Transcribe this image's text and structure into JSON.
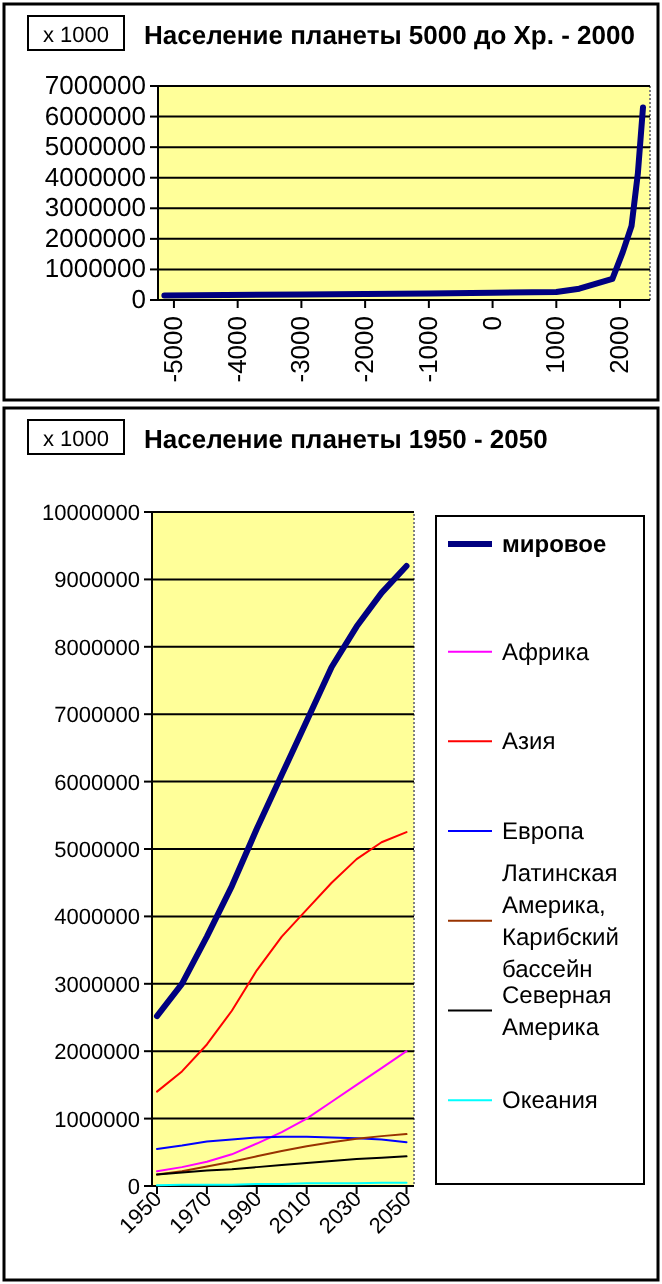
{
  "chart_data": [
    {
      "type": "line",
      "title": "Население планеты 5000 до Хр. - 2000",
      "annotations": [
        "x 1000"
      ],
      "xlim": [
        -5250,
        2470
      ],
      "xticks": [
        -5000,
        -4000,
        -3000,
        -2000,
        -1000,
        0,
        1000,
        2000
      ],
      "ylim": [
        0,
        7000000
      ],
      "yticks": [
        0,
        1000000,
        2000000,
        3000000,
        4000000,
        5000000,
        6000000,
        7000000
      ],
      "grid": "y",
      "legend": false,
      "x": [
        -5150,
        -3000,
        -1000,
        0,
        1000,
        1360,
        1880,
        2040,
        2180,
        2280,
        2360
      ],
      "series": [
        {
          "color": "#000080",
          "values": [
            150000,
            180000,
            210000,
            240000,
            260000,
            370000,
            690000,
            1550000,
            2420000,
            4150000,
            6300000
          ]
        }
      ]
    },
    {
      "type": "line",
      "title": "Население планеты 1950  - 2050",
      "annotations": [
        "x 1000"
      ],
      "xlim": [
        1948,
        2053
      ],
      "xticks": [
        1950,
        1970,
        1990,
        2010,
        2030,
        2050
      ],
      "ylim": [
        0,
        10000000
      ],
      "yticks": [
        0,
        1000000,
        2000000,
        3000000,
        4000000,
        5000000,
        6000000,
        7000000,
        8000000,
        9000000,
        10000000
      ],
      "grid": "y",
      "legend": "right",
      "x": [
        1950,
        1960,
        1970,
        1980,
        1990,
        2000,
        2010,
        2020,
        2030,
        2040,
        2050
      ],
      "series": [
        {
          "name": "мировое",
          "color": "#000080",
          "values": [
            2520000,
            3000000,
            3700000,
            4450000,
            5300000,
            6100000,
            6900000,
            7700000,
            8300000,
            8800000,
            9200000
          ]
        },
        {
          "name": "Африка",
          "color": "#ff00ff",
          "values": [
            220000,
            280000,
            360000,
            470000,
            630000,
            800000,
            1000000,
            1250000,
            1500000,
            1750000,
            2000000
          ]
        },
        {
          "name": "Азия",
          "color": "#ff0000",
          "values": [
            1400000,
            1700000,
            2100000,
            2600000,
            3200000,
            3700000,
            4100000,
            4500000,
            4850000,
            5100000,
            5250000
          ]
        },
        {
          "name": "Европа",
          "color": "#0000ff",
          "values": [
            550000,
            600000,
            660000,
            690000,
            720000,
            730000,
            730000,
            720000,
            710000,
            690000,
            650000
          ]
        },
        {
          "name": "Латинская Америка, Карибский бассейн",
          "color": "#993300",
          "values": [
            170000,
            220000,
            290000,
            360000,
            440000,
            520000,
            590000,
            650000,
            700000,
            740000,
            770000
          ]
        },
        {
          "name": "Северная Америка",
          "color": "#000000",
          "values": [
            170000,
            200000,
            230000,
            250000,
            280000,
            310000,
            340000,
            370000,
            400000,
            420000,
            440000
          ]
        },
        {
          "name": "Океания",
          "color": "#00ffff",
          "values": [
            10000,
            20000,
            20000,
            20000,
            30000,
            30000,
            40000,
            40000,
            40000,
            50000,
            50000
          ]
        }
      ]
    }
  ]
}
